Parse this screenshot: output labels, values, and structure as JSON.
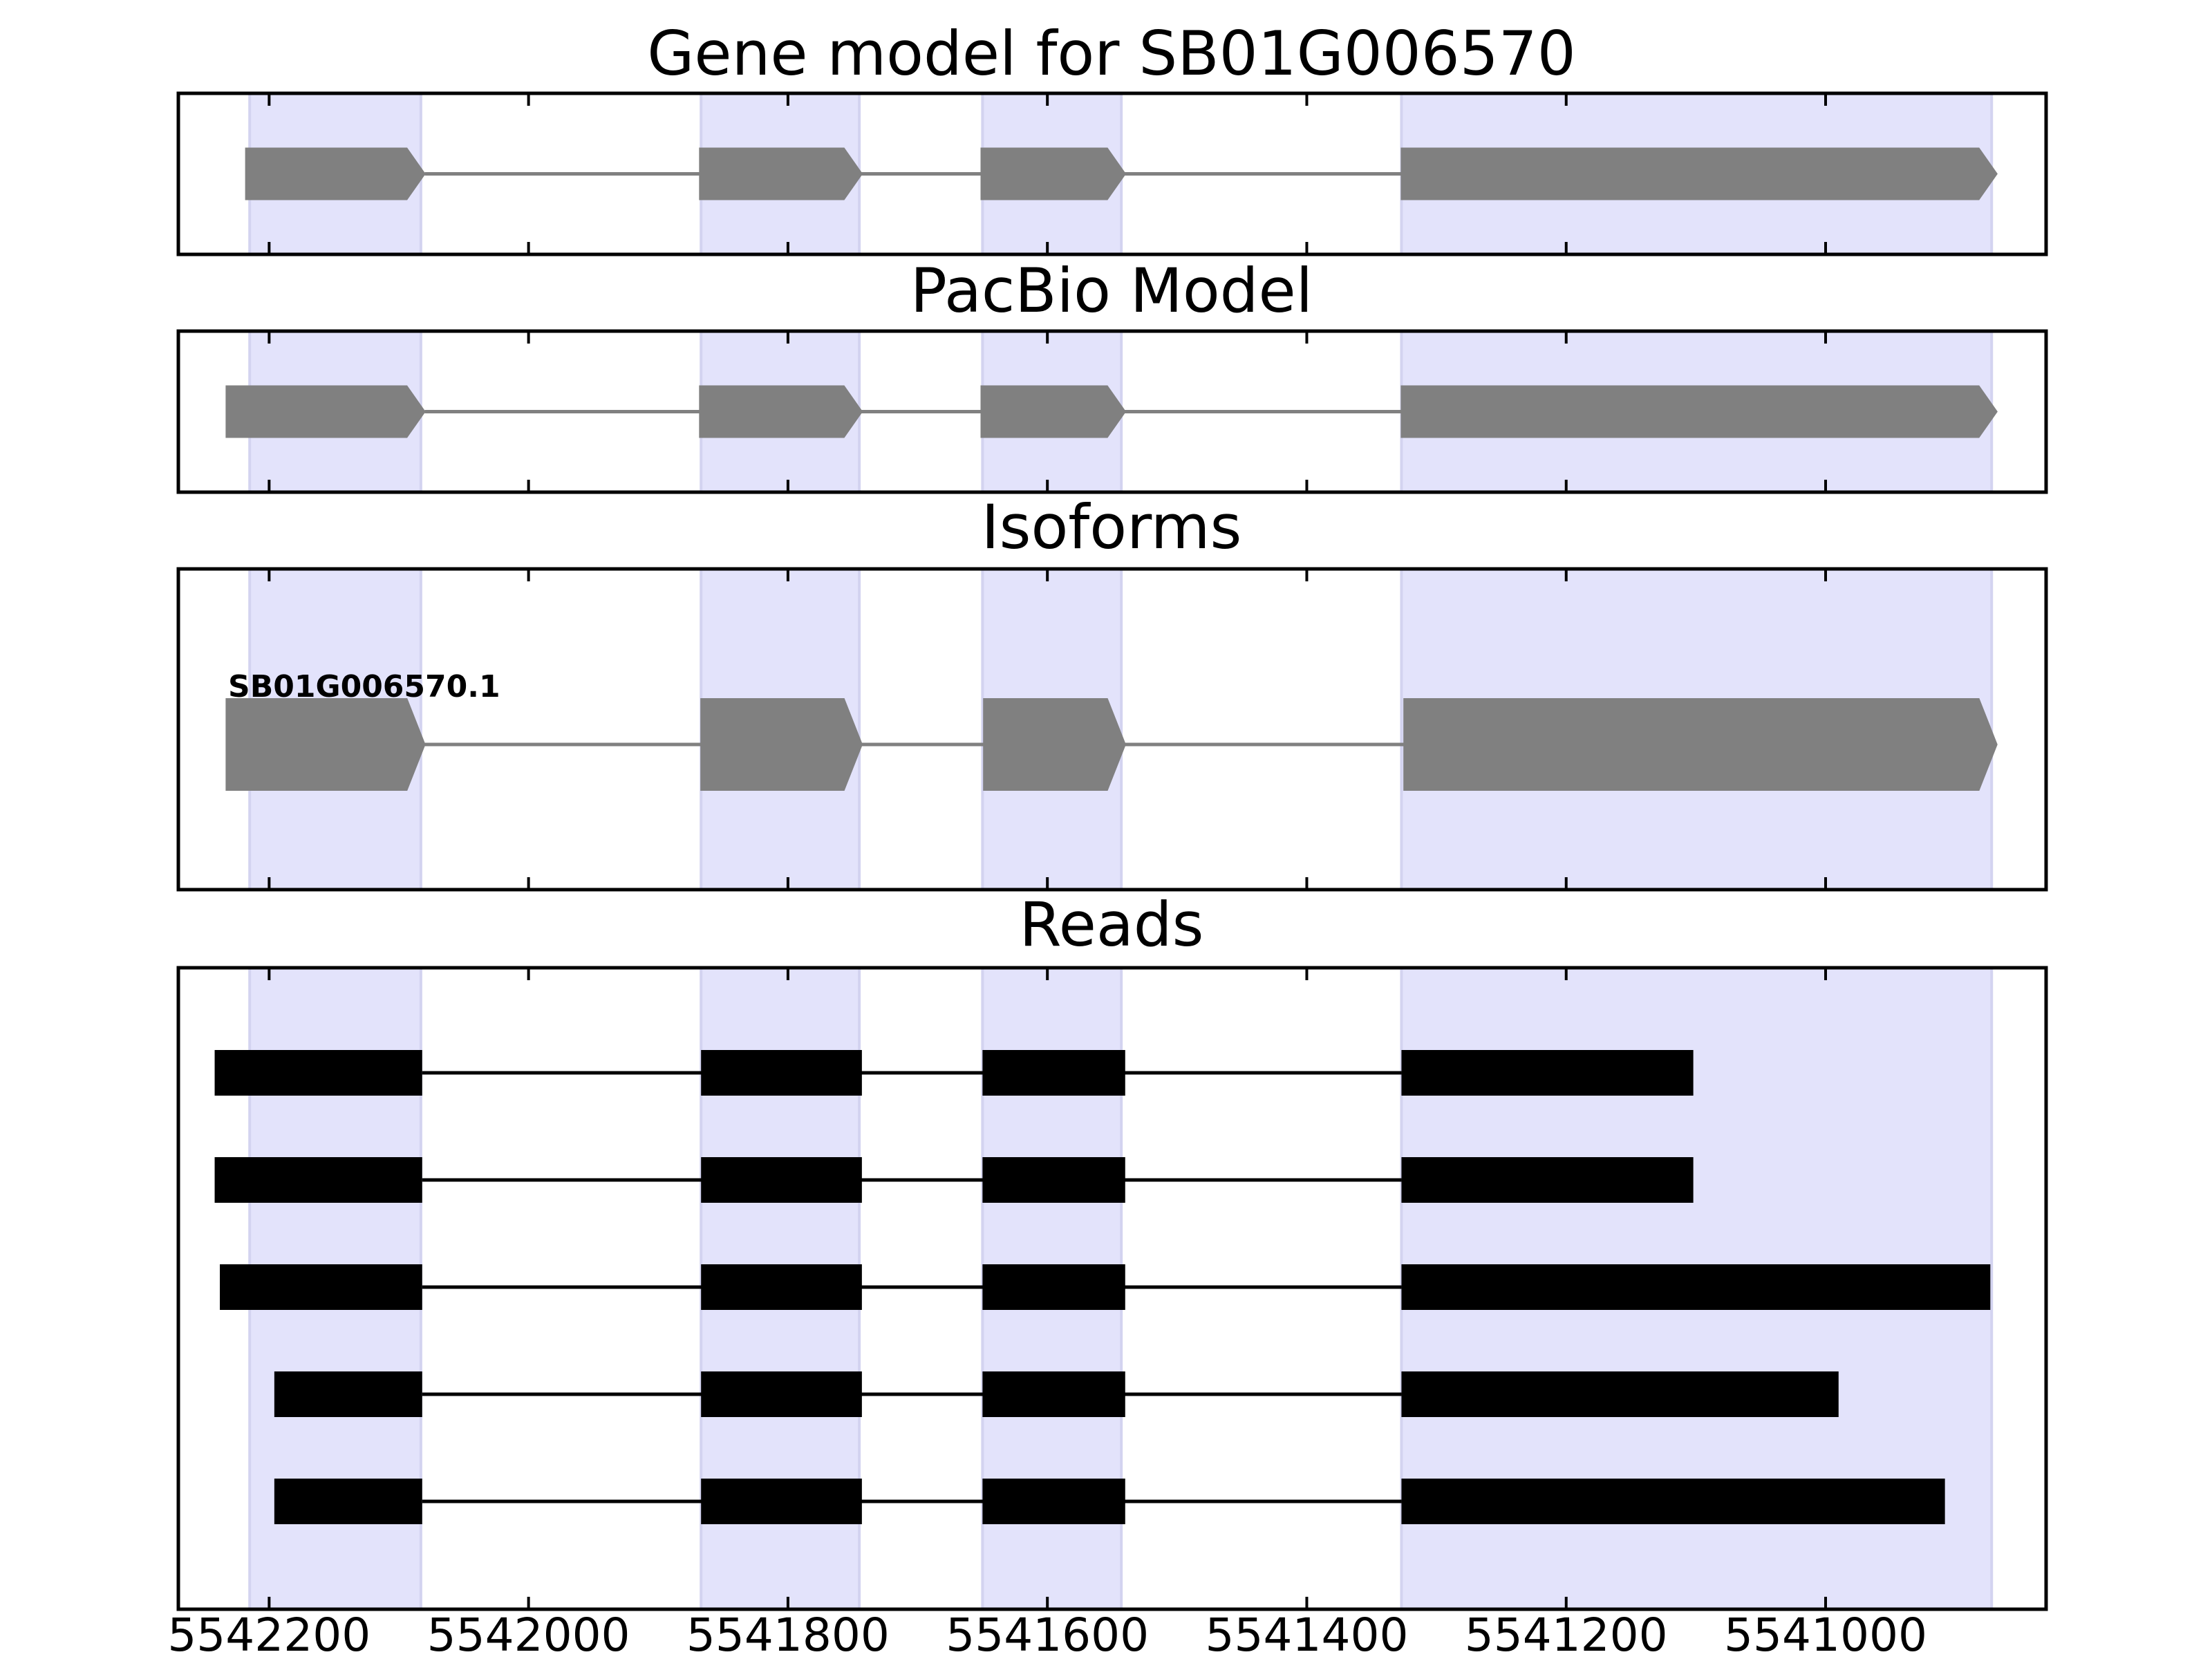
{
  "chart_data": {
    "type": "gene-model",
    "x_direction": "decreasing-to-right",
    "xlim": [
      5542270,
      5540830
    ],
    "xticks": [
      5542200,
      5542000,
      5541800,
      5541600,
      5541400,
      5541200,
      5541000
    ],
    "tick_labels": [
      "5542200",
      "5542000",
      "5541800",
      "5541600",
      "5541400",
      "5541200",
      "5541000"
    ],
    "highlight_color": "#e3e3fb",
    "highlight_regions": [
      [
        5542215,
        5542083
      ],
      [
        5541867,
        5541745
      ],
      [
        5541650,
        5541543
      ],
      [
        5541327,
        5540872
      ]
    ],
    "panels": [
      {
        "id": "gene-model",
        "title": "Gene model for SB01G006570",
        "color": "#808080",
        "exons": [
          [
            5542218,
            5542080
          ],
          [
            5541868,
            5541743
          ],
          [
            5541651,
            5541540
          ],
          [
            5541327,
            5540868
          ]
        ]
      },
      {
        "id": "pacbio-model",
        "title": "PacBio Model",
        "color": "#808080",
        "exons": [
          [
            5542233,
            5542080
          ],
          [
            5541868,
            5541743
          ],
          [
            5541651,
            5541540
          ],
          [
            5541327,
            5540868
          ]
        ]
      },
      {
        "id": "isoforms",
        "title": "Isoforms",
        "color": "#808080",
        "isoform_label": "SB01G006570.1",
        "exons": [
          [
            5542233,
            5542080
          ],
          [
            5541867,
            5541743
          ],
          [
            5541649,
            5541540
          ],
          [
            5541325,
            5540868
          ]
        ]
      },
      {
        "id": "reads",
        "title": "Reads",
        "color": "#000000",
        "reads": [
          [
            [
              5542242,
              5542082
            ],
            [
              5541867,
              5541743
            ],
            [
              5541650,
              5541540
            ],
            [
              5541327,
              5541102
            ]
          ],
          [
            [
              5542242,
              5542082
            ],
            [
              5541867,
              5541743
            ],
            [
              5541650,
              5541540
            ],
            [
              5541327,
              5541102
            ]
          ],
          [
            [
              5542238,
              5542082
            ],
            [
              5541867,
              5541743
            ],
            [
              5541650,
              5541540
            ],
            [
              5541327,
              5540873
            ]
          ],
          [
            [
              5542196,
              5542082
            ],
            [
              5541867,
              5541743
            ],
            [
              5541650,
              5541540
            ],
            [
              5541327,
              5540990
            ]
          ],
          [
            [
              5542196,
              5542082
            ],
            [
              5541867,
              5541743
            ],
            [
              5541650,
              5541540
            ],
            [
              5541327,
              5540908
            ]
          ]
        ]
      }
    ]
  }
}
